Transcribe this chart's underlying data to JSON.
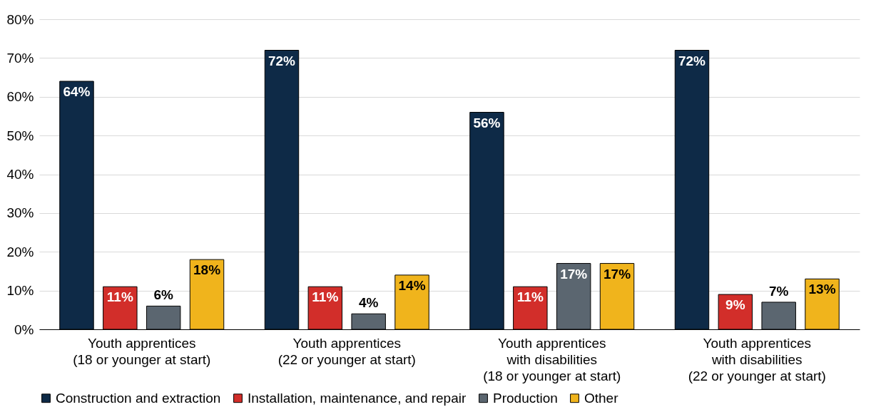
{
  "chart_data": {
    "type": "bar",
    "categories": [
      "Youth apprentices\n(18 or younger at start)",
      "Youth apprentices\n(22 or younger at start)",
      "Youth apprentices\nwith disabilities\n(18 or younger at start)",
      "Youth apprentices\nwith disabilities\n(22 or younger at start)"
    ],
    "series": [
      {
        "name": "Construction and extraction",
        "color": "#0e2a47",
        "values": [
          64,
          72,
          56,
          72
        ],
        "value_labels": [
          "64%",
          "72%",
          "56%",
          "72%"
        ]
      },
      {
        "name": "Installation, maintenance, and repair",
        "color": "#d22e2a",
        "values": [
          11,
          11,
          11,
          9
        ],
        "value_labels": [
          "11%",
          "11%",
          "11%",
          "9%"
        ]
      },
      {
        "name": "Production",
        "color": "#5b6670",
        "values": [
          6,
          4,
          17,
          7
        ],
        "value_labels": [
          "6%",
          "4%",
          "17%",
          "7%"
        ]
      },
      {
        "name": "Other",
        "color": "#f0b41c",
        "values": [
          18,
          14,
          17,
          13
        ],
        "value_labels": [
          "18%",
          "14%",
          "17%",
          "13%"
        ]
      }
    ],
    "ylim": [
      0,
      80
    ],
    "yticks": [
      {
        "value": 0,
        "label": "0%"
      },
      {
        "value": 10,
        "label": "10%"
      },
      {
        "value": 20,
        "label": "20%"
      },
      {
        "value": 30,
        "label": "30%"
      },
      {
        "value": 40,
        "label": "40%"
      },
      {
        "value": 50,
        "label": "50%"
      },
      {
        "value": 60,
        "label": "60%"
      },
      {
        "value": 70,
        "label": "70%"
      },
      {
        "value": 80,
        "label": "80%"
      }
    ],
    "grid": "y",
    "legend": "bottom"
  }
}
